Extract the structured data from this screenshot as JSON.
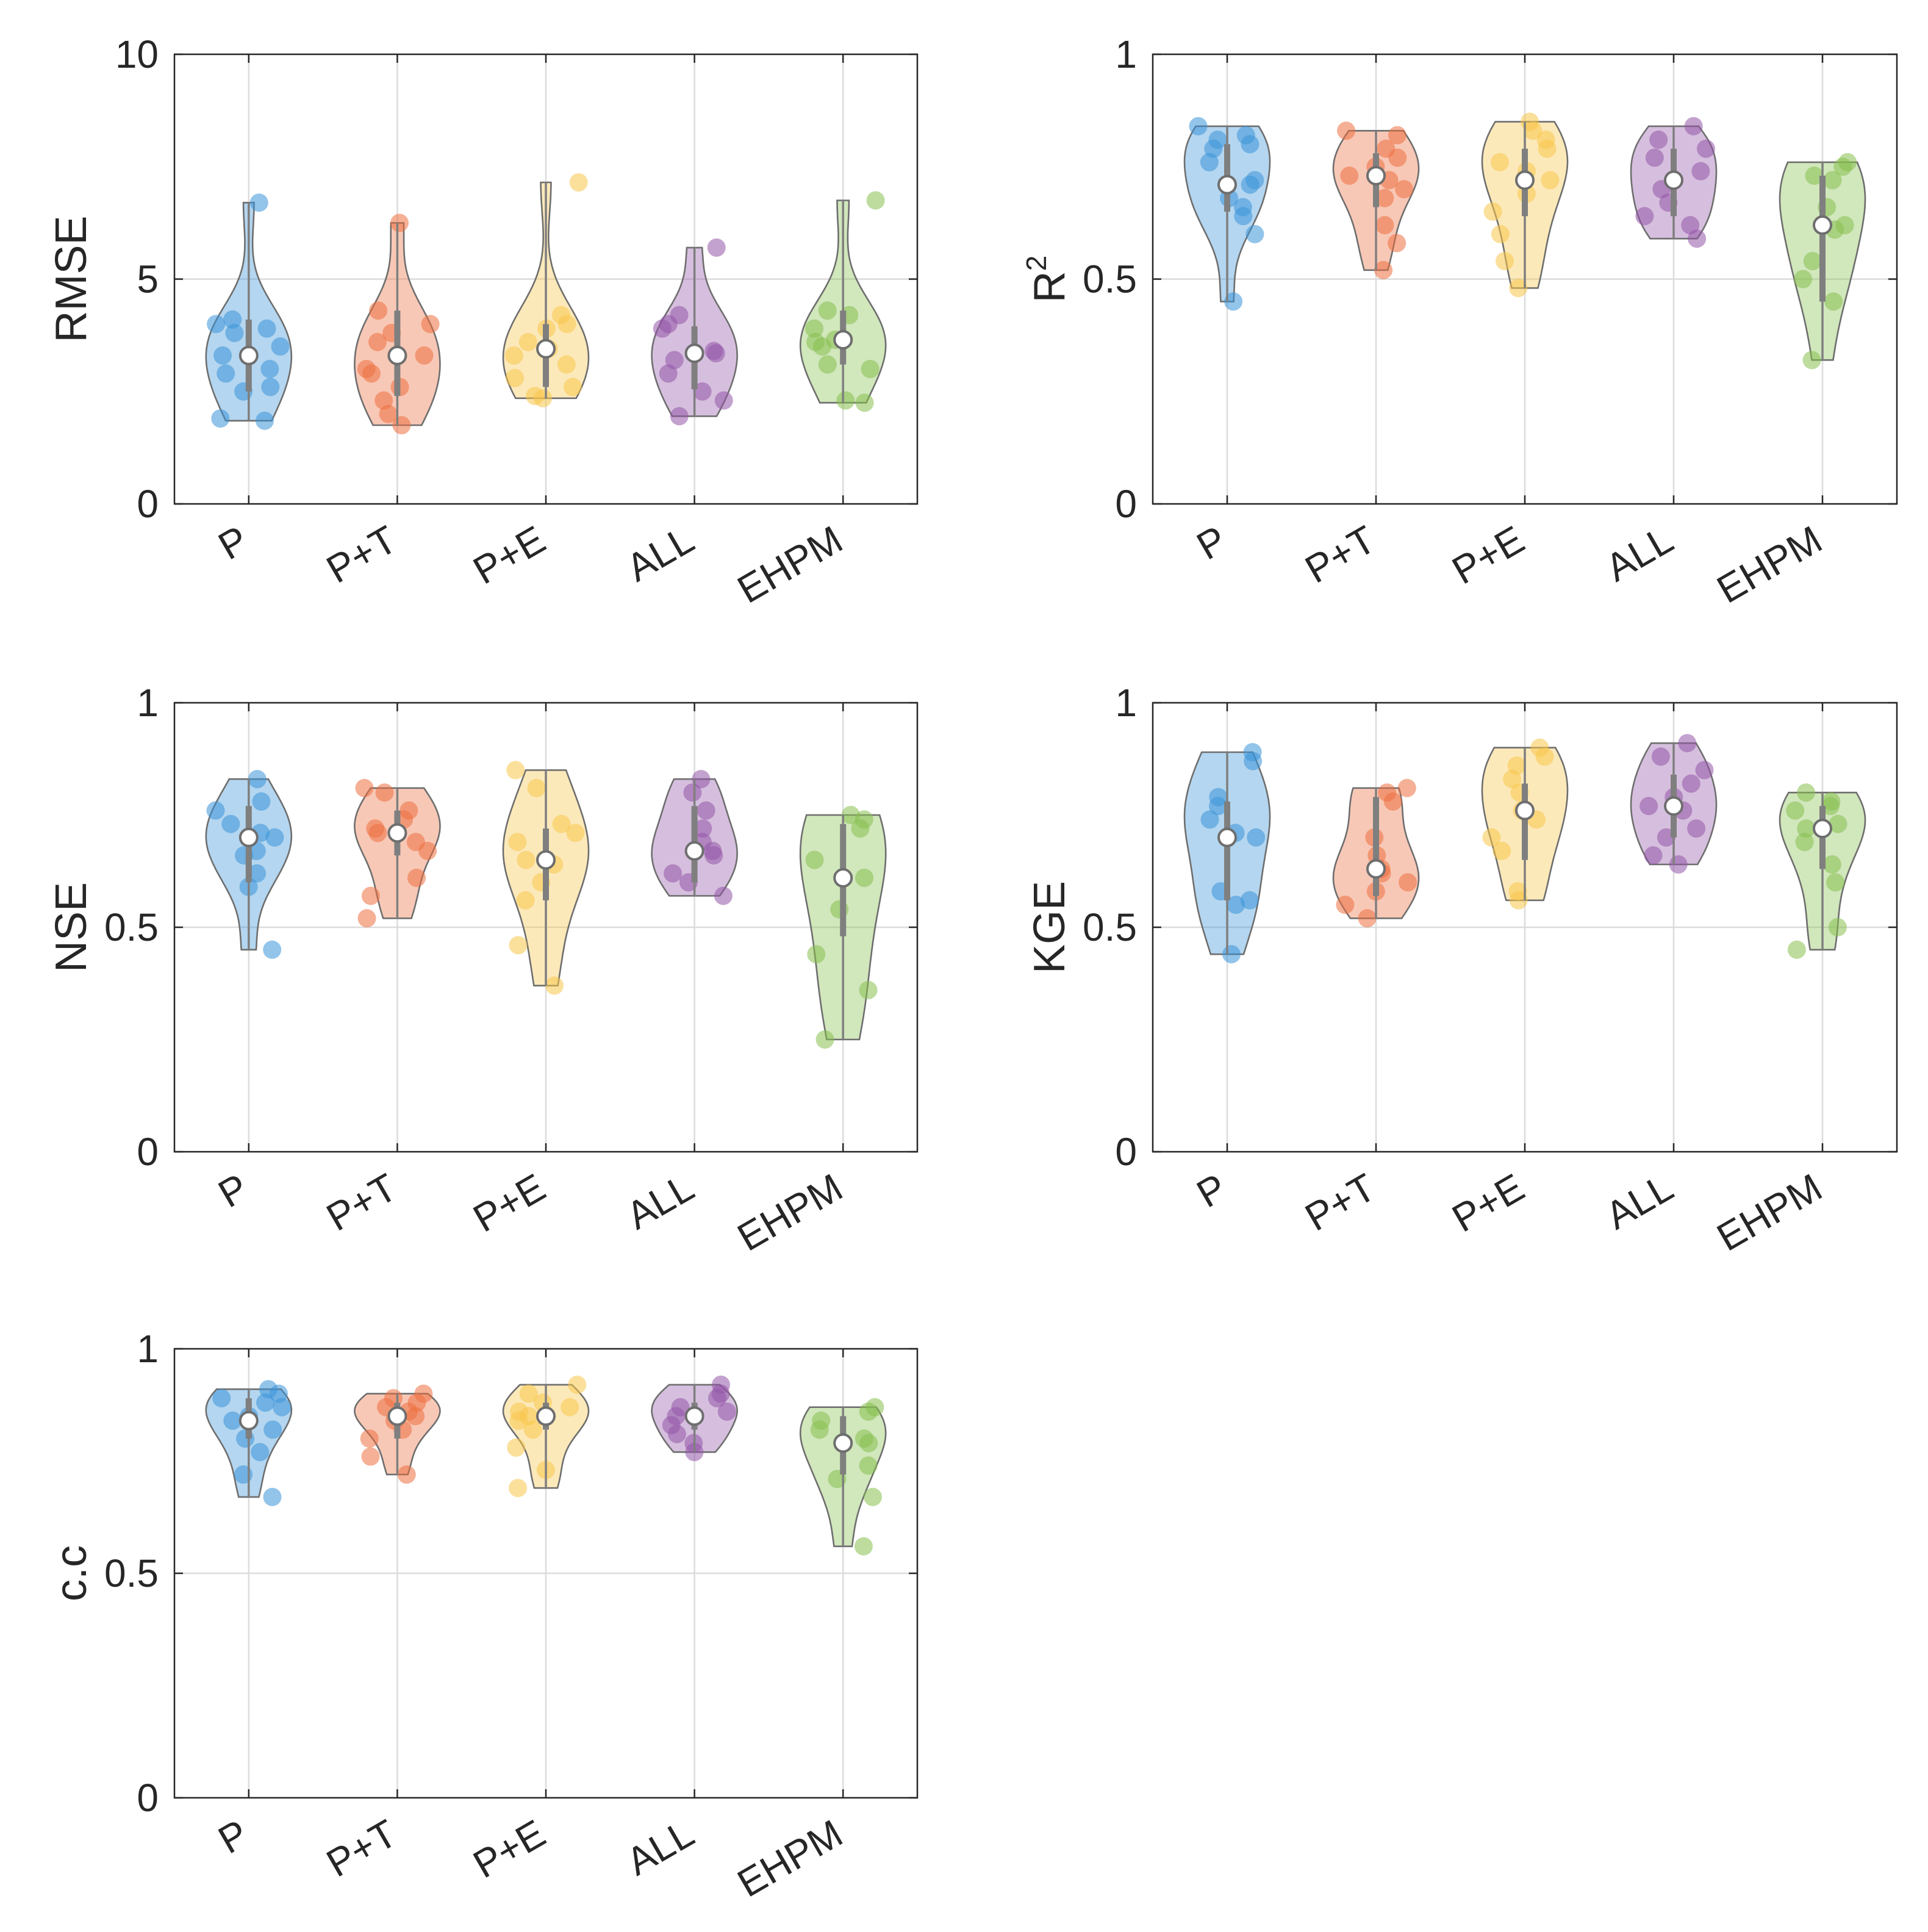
{
  "figure": {
    "categories": [
      "P",
      "P+T",
      "P+E",
      "ALL",
      "EHPM"
    ],
    "colors": [
      "#3a93d8",
      "#ec6f3f",
      "#f8c64a",
      "#9456a8",
      "#86bf4e"
    ]
  },
  "chart_data": [
    {
      "type": "violin",
      "ylabel": "RMSE",
      "ylabel_sup": "",
      "ylim": [
        0,
        10
      ],
      "yticks": [
        0,
        5,
        10
      ],
      "ytick_labels": [
        "0",
        "5",
        "10"
      ],
      "grid": true,
      "series": [
        {
          "name": "P",
          "min": 1.85,
          "max": 6.7,
          "median": 3.3,
          "q1": 2.5,
          "q3": 4.1,
          "points": [
            1.85,
            1.9,
            2.5,
            2.6,
            2.9,
            3.0,
            3.3,
            3.5,
            3.8,
            3.9,
            4.0,
            4.1,
            6.7
          ]
        },
        {
          "name": "P+T",
          "min": 1.75,
          "max": 6.25,
          "median": 3.3,
          "q1": 2.4,
          "q3": 4.3,
          "points": [
            1.75,
            2.0,
            2.3,
            2.6,
            2.9,
            3.0,
            3.3,
            3.6,
            3.8,
            4.0,
            4.3,
            6.25
          ]
        },
        {
          "name": "P+E",
          "min": 2.35,
          "max": 7.15,
          "median": 3.45,
          "q1": 2.6,
          "q3": 4.0,
          "points": [
            2.35,
            2.4,
            2.6,
            2.8,
            3.1,
            3.3,
            3.45,
            3.6,
            3.9,
            4.0,
            4.2,
            7.15
          ]
        },
        {
          "name": "ALL",
          "min": 1.95,
          "max": 5.7,
          "median": 3.35,
          "q1": 2.55,
          "q3": 3.95,
          "points": [
            1.95,
            2.3,
            2.5,
            2.9,
            3.2,
            3.35,
            3.4,
            3.9,
            4.0,
            4.2,
            5.7
          ]
        },
        {
          "name": "EHPM",
          "min": 2.25,
          "max": 6.75,
          "median": 3.65,
          "q1": 3.1,
          "q3": 4.3,
          "points": [
            2.25,
            2.3,
            3.0,
            3.1,
            3.5,
            3.6,
            3.65,
            3.9,
            4.2,
            4.3,
            6.75
          ]
        }
      ]
    },
    {
      "type": "violin",
      "ylabel": "R",
      "ylabel_sup": "2",
      "ylim": [
        0,
        1
      ],
      "yticks": [
        0,
        0.5,
        1
      ],
      "ytick_labels": [
        "0",
        "0.5",
        "1"
      ],
      "grid": true,
      "series": [
        {
          "name": "P",
          "min": 0.45,
          "max": 0.84,
          "median": 0.71,
          "q1": 0.65,
          "q3": 0.8,
          "points": [
            0.45,
            0.6,
            0.64,
            0.66,
            0.68,
            0.71,
            0.72,
            0.76,
            0.79,
            0.8,
            0.81,
            0.82,
            0.84
          ]
        },
        {
          "name": "P+T",
          "min": 0.52,
          "max": 0.83,
          "median": 0.73,
          "q1": 0.66,
          "q3": 0.78,
          "points": [
            0.52,
            0.58,
            0.62,
            0.68,
            0.7,
            0.72,
            0.73,
            0.75,
            0.77,
            0.79,
            0.82,
            0.83
          ]
        },
        {
          "name": "P+E",
          "min": 0.48,
          "max": 0.85,
          "median": 0.72,
          "q1": 0.64,
          "q3": 0.79,
          "points": [
            0.48,
            0.54,
            0.6,
            0.65,
            0.69,
            0.72,
            0.74,
            0.76,
            0.79,
            0.81,
            0.83,
            0.85
          ]
        },
        {
          "name": "ALL",
          "min": 0.59,
          "max": 0.84,
          "median": 0.72,
          "q1": 0.64,
          "q3": 0.79,
          "points": [
            0.59,
            0.62,
            0.64,
            0.67,
            0.7,
            0.72,
            0.74,
            0.77,
            0.79,
            0.81,
            0.84
          ]
        },
        {
          "name": "EHPM",
          "min": 0.32,
          "max": 0.76,
          "median": 0.62,
          "q1": 0.45,
          "q3": 0.73,
          "points": [
            0.32,
            0.45,
            0.5,
            0.54,
            0.61,
            0.62,
            0.66,
            0.72,
            0.73,
            0.75,
            0.76
          ]
        }
      ]
    },
    {
      "type": "violin",
      "ylabel": "NSE",
      "ylabel_sup": "",
      "ylim": [
        0,
        1
      ],
      "yticks": [
        0,
        0.5,
        1
      ],
      "ytick_labels": [
        "0",
        "0.5",
        "1"
      ],
      "grid": true,
      "series": [
        {
          "name": "P",
          "min": 0.45,
          "max": 0.83,
          "median": 0.7,
          "q1": 0.6,
          "q3": 0.77,
          "points": [
            0.45,
            0.59,
            0.62,
            0.66,
            0.67,
            0.7,
            0.71,
            0.73,
            0.76,
            0.78,
            0.83
          ]
        },
        {
          "name": "P+T",
          "min": 0.52,
          "max": 0.81,
          "median": 0.71,
          "q1": 0.66,
          "q3": 0.76,
          "points": [
            0.52,
            0.57,
            0.61,
            0.67,
            0.69,
            0.71,
            0.72,
            0.74,
            0.76,
            0.8,
            0.81
          ]
        },
        {
          "name": "P+E",
          "min": 0.37,
          "max": 0.85,
          "median": 0.65,
          "q1": 0.56,
          "q3": 0.72,
          "points": [
            0.37,
            0.46,
            0.56,
            0.6,
            0.64,
            0.65,
            0.69,
            0.71,
            0.73,
            0.81,
            0.85
          ]
        },
        {
          "name": "ALL",
          "min": 0.57,
          "max": 0.83,
          "median": 0.67,
          "q1": 0.6,
          "q3": 0.77,
          "points": [
            0.57,
            0.6,
            0.62,
            0.66,
            0.67,
            0.69,
            0.72,
            0.76,
            0.8,
            0.83
          ]
        },
        {
          "name": "EHPM",
          "min": 0.25,
          "max": 0.75,
          "median": 0.61,
          "q1": 0.48,
          "q3": 0.73,
          "points": [
            0.25,
            0.36,
            0.44,
            0.54,
            0.61,
            0.65,
            0.72,
            0.74,
            0.75
          ]
        }
      ]
    },
    {
      "type": "violin",
      "ylabel": "KGE",
      "ylabel_sup": "",
      "ylim": [
        0,
        1
      ],
      "yticks": [
        0,
        0.5,
        1
      ],
      "ytick_labels": [
        "0",
        "0.5",
        "1"
      ],
      "grid": true,
      "series": [
        {
          "name": "P",
          "min": 0.44,
          "max": 0.89,
          "median": 0.7,
          "q1": 0.56,
          "q3": 0.78,
          "points": [
            0.44,
            0.55,
            0.56,
            0.58,
            0.7,
            0.71,
            0.74,
            0.77,
            0.79,
            0.87,
            0.89
          ]
        },
        {
          "name": "P+T",
          "min": 0.52,
          "max": 0.81,
          "median": 0.63,
          "q1": 0.57,
          "q3": 0.79,
          "points": [
            0.52,
            0.55,
            0.58,
            0.6,
            0.62,
            0.63,
            0.66,
            0.7,
            0.78,
            0.8,
            0.81
          ]
        },
        {
          "name": "P+E",
          "min": 0.56,
          "max": 0.9,
          "median": 0.76,
          "q1": 0.65,
          "q3": 0.82,
          "points": [
            0.56,
            0.58,
            0.67,
            0.7,
            0.74,
            0.76,
            0.8,
            0.83,
            0.86,
            0.88,
            0.9
          ]
        },
        {
          "name": "ALL",
          "min": 0.64,
          "max": 0.91,
          "median": 0.77,
          "q1": 0.7,
          "q3": 0.84,
          "points": [
            0.64,
            0.66,
            0.7,
            0.72,
            0.76,
            0.77,
            0.79,
            0.82,
            0.85,
            0.88,
            0.91
          ]
        },
        {
          "name": "EHPM",
          "min": 0.45,
          "max": 0.8,
          "median": 0.72,
          "q1": 0.63,
          "q3": 0.77,
          "points": [
            0.45,
            0.5,
            0.6,
            0.64,
            0.69,
            0.72,
            0.73,
            0.76,
            0.77,
            0.78,
            0.8
          ]
        }
      ]
    },
    {
      "type": "violin",
      "ylabel": "c.c",
      "ylabel_sup": "",
      "ylim": [
        0,
        1
      ],
      "yticks": [
        0,
        0.5,
        1
      ],
      "ytick_labels": [
        "0",
        "0.5",
        "1"
      ],
      "grid": true,
      "series": [
        {
          "name": "P",
          "min": 0.67,
          "max": 0.91,
          "median": 0.84,
          "q1": 0.8,
          "q3": 0.89,
          "points": [
            0.67,
            0.72,
            0.77,
            0.8,
            0.82,
            0.84,
            0.85,
            0.87,
            0.88,
            0.89,
            0.9,
            0.91
          ]
        },
        {
          "name": "P+T",
          "min": 0.72,
          "max": 0.9,
          "median": 0.85,
          "q1": 0.8,
          "q3": 0.88,
          "points": [
            0.72,
            0.76,
            0.8,
            0.82,
            0.84,
            0.85,
            0.86,
            0.87,
            0.88,
            0.89,
            0.9
          ]
        },
        {
          "name": "P+E",
          "min": 0.69,
          "max": 0.92,
          "median": 0.85,
          "q1": 0.82,
          "q3": 0.88,
          "points": [
            0.69,
            0.73,
            0.78,
            0.82,
            0.84,
            0.85,
            0.86,
            0.87,
            0.88,
            0.9,
            0.92
          ]
        },
        {
          "name": "ALL",
          "min": 0.77,
          "max": 0.92,
          "median": 0.85,
          "q1": 0.82,
          "q3": 0.88,
          "points": [
            0.77,
            0.79,
            0.81,
            0.83,
            0.85,
            0.86,
            0.87,
            0.89,
            0.9,
            0.92
          ]
        },
        {
          "name": "EHPM",
          "min": 0.56,
          "max": 0.87,
          "median": 0.79,
          "q1": 0.72,
          "q3": 0.85,
          "points": [
            0.56,
            0.67,
            0.71,
            0.74,
            0.79,
            0.8,
            0.82,
            0.84,
            0.86,
            0.87
          ]
        }
      ]
    }
  ]
}
